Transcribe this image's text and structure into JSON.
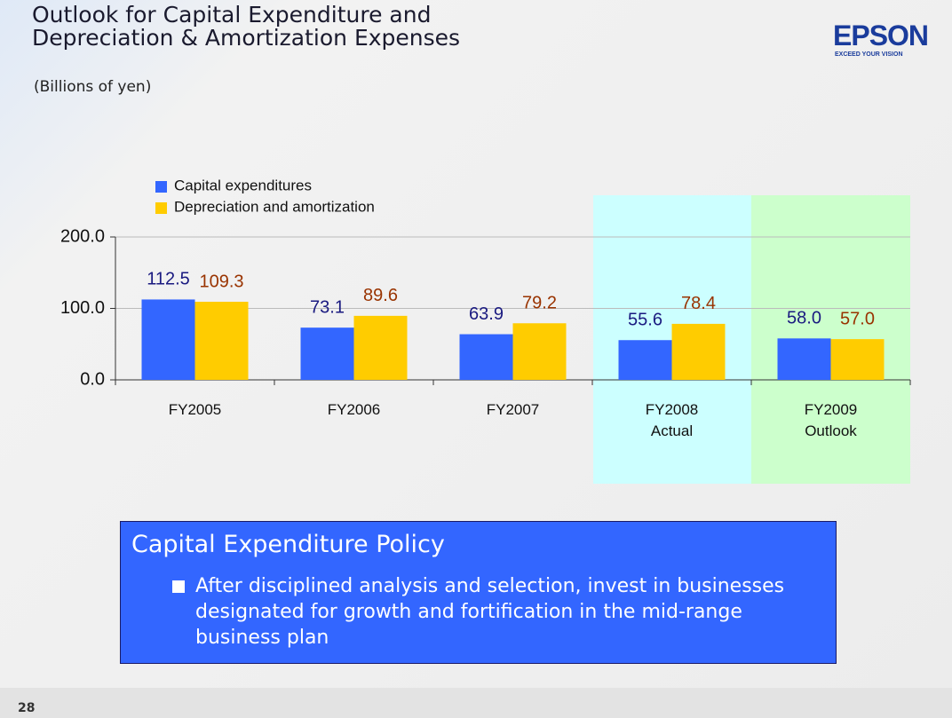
{
  "header": {
    "title": "Outlook for Capital Expenditure and\nDepreciation & Amortization Expenses",
    "logo": "EPSON",
    "logo_tagline": "EXCEED YOUR VISION"
  },
  "chart_data": {
    "type": "bar",
    "subtitle": "(Billions of yen)",
    "categories": [
      "FY2005",
      "FY2006",
      "FY2007",
      "FY2008\nActual",
      "FY2009\nOutlook"
    ],
    "series": [
      {
        "name": "Capital expenditures",
        "color": "#3366ff",
        "label_color": "#1a1a80",
        "values": [
          112.5,
          73.1,
          63.9,
          55.6,
          58.0
        ],
        "value_labels": [
          "112.5",
          "73.1",
          "63.9",
          "55.6",
          "58.0"
        ]
      },
      {
        "name": "Depreciation and amortization",
        "color": "#ffcc00",
        "label_color": "#993300",
        "values": [
          109.3,
          89.6,
          79.2,
          78.4,
          57.0
        ],
        "value_labels": [
          "109.3",
          "89.6",
          "79.2",
          "78.4",
          "57.0"
        ]
      }
    ],
    "ylim": [
      0,
      200
    ],
    "yticks": [
      {
        "value": 0,
        "label": "0.0"
      },
      {
        "value": 100,
        "label": "100.0"
      },
      {
        "value": 200,
        "label": "200.0"
      }
    ],
    "grid": true,
    "legend": "upper-left"
  },
  "policy": {
    "heading": "Capital Expenditure Policy",
    "bullets": [
      "After disciplined analysis and selection, invest in businesses designated for growth and fortification in the mid-range business plan"
    ]
  },
  "page_number": "28"
}
